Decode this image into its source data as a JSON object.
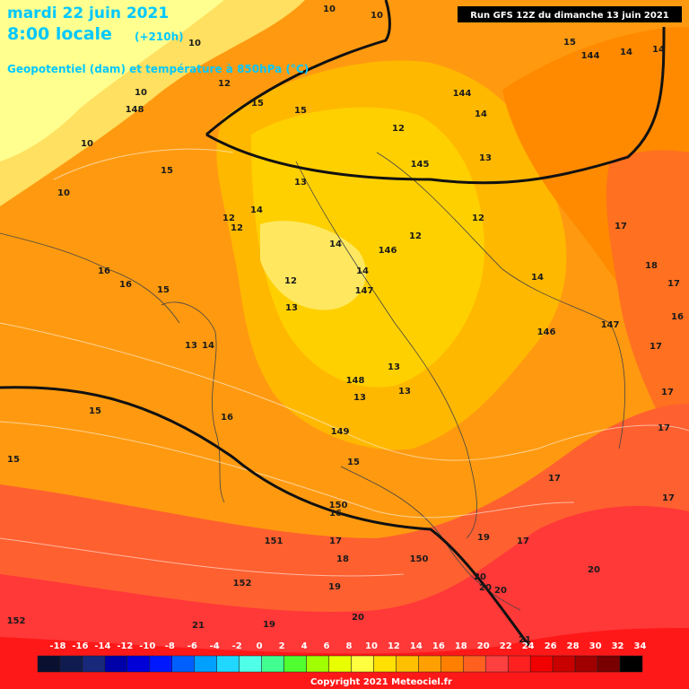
{
  "header": {
    "date": "mardi 22 juin 2021",
    "time": "8:00 locale",
    "lead": "(+210h)",
    "subtitle": "Geopotentiel (dam) et température à 850hPa (°C)",
    "run": "Run GFS 12Z du dimanche 13 juin 2021"
  },
  "map": {
    "contour_labels": [
      "10",
      "10",
      "10",
      "10",
      "10",
      "10",
      "12",
      "15",
      "15",
      "148",
      "15",
      "12",
      "144",
      "14",
      "13",
      "145",
      "15",
      "144",
      "14",
      "14",
      "13",
      "14",
      "12",
      "12",
      "12",
      "12",
      "14",
      "146",
      "17",
      "18",
      "17",
      "16",
      "16",
      "15",
      "12",
      "14",
      "147",
      "13",
      "14",
      "146",
      "147",
      "16",
      "17",
      "13",
      "14",
      "13",
      "148",
      "13",
      "13",
      "17",
      "15",
      "16",
      "149",
      "17",
      "15",
      "15",
      "17",
      "17",
      "150",
      "16",
      "151",
      "17",
      "19",
      "17",
      "18",
      "150",
      "20",
      "20",
      "20",
      "20",
      "152",
      "19",
      "152",
      "19",
      "20",
      "21",
      "21"
    ]
  },
  "legend": {
    "labels": [
      -18,
      -16,
      -14,
      -12,
      -10,
      -8,
      -6,
      -4,
      -2,
      0,
      2,
      4,
      6,
      8,
      10,
      12,
      14,
      16,
      18,
      20,
      22,
      24,
      26,
      28,
      30,
      32,
      34
    ],
    "colors": [
      "#0a1030",
      "#101c50",
      "#18287a",
      "#0000a8",
      "#0000d8",
      "#0018ff",
      "#0060ff",
      "#00a0ff",
      "#20d8ff",
      "#50ffe8",
      "#40ff90",
      "#50ff30",
      "#a0ff00",
      "#e8ff00",
      "#ffff40",
      "#ffe000",
      "#ffc000",
      "#ffa000",
      "#ff8000",
      "#ff6020",
      "#ff4040",
      "#ff2020",
      "#f00000",
      "#c80000",
      "#a00000",
      "#780000",
      "#000000"
    ]
  },
  "footer": {
    "copyright": "Copyright 2021 Meteociel.fr"
  }
}
